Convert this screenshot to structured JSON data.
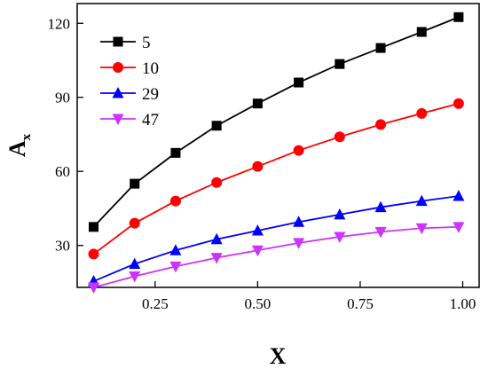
{
  "chart_data": {
    "type": "line",
    "xlabel": "X",
    "ylabel": "A",
    "ylabel_subscript": "x",
    "xlim": [
      0.06,
      1.04
    ],
    "ylim": [
      13,
      128
    ],
    "xticks": [
      0.25,
      0.5,
      0.75,
      1.0
    ],
    "xtick_labels": [
      "0.25",
      "0.50",
      "0.75",
      "1.00"
    ],
    "yticks": [
      30,
      60,
      90,
      120
    ],
    "ytick_labels": [
      "30",
      "60",
      "90",
      "120"
    ],
    "grid": false,
    "legend_position": "top-left",
    "x": [
      0.1,
      0.2,
      0.3,
      0.4,
      0.5,
      0.6,
      0.7,
      0.8,
      0.9,
      0.99
    ],
    "series": [
      {
        "name": "5",
        "color": "#000000",
        "marker": "square",
        "values": [
          37.5,
          55.0,
          67.5,
          78.5,
          87.5,
          96.0,
          103.5,
          110.0,
          116.5,
          122.5
        ]
      },
      {
        "name": "10",
        "color": "#ff0000",
        "marker": "circle",
        "values": [
          26.5,
          39.0,
          48.0,
          55.5,
          62.0,
          68.5,
          74.0,
          79.0,
          83.5,
          87.5
        ]
      },
      {
        "name": "29",
        "color": "#0000ff",
        "marker": "triangle-up",
        "values": [
          15.5,
          22.5,
          28.0,
          32.5,
          36.0,
          39.5,
          42.5,
          45.5,
          48.0,
          50.0
        ]
      },
      {
        "name": "47",
        "color": "#cc33ff",
        "marker": "triangle-down",
        "values": [
          13.0,
          17.5,
          21.5,
          25.0,
          28.0,
          31.0,
          33.5,
          35.5,
          37.0,
          37.5
        ]
      }
    ]
  }
}
